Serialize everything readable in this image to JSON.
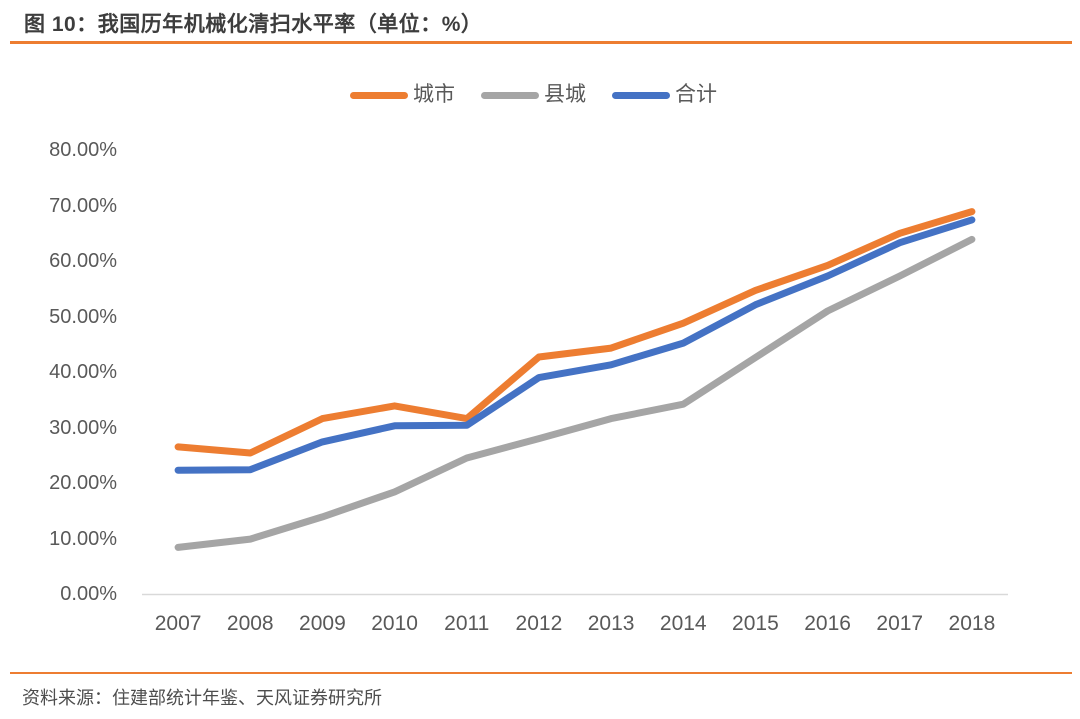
{
  "header": {
    "figure_title": "图 10：我国历年机械化清扫水平率（单位：%）"
  },
  "chart_data": {
    "type": "line",
    "title": "我国历年机械化清扫水平率",
    "unit": "%",
    "legend_position": "top",
    "grid": false,
    "ylim": [
      0,
      80
    ],
    "yticks": [
      "80.00%",
      "70.00%",
      "60.00%",
      "50.00%",
      "40.00%",
      "30.00%",
      "20.00%",
      "10.00%",
      "0.00%"
    ],
    "categories": [
      "2007",
      "2008",
      "2009",
      "2010",
      "2011",
      "2012",
      "2013",
      "2014",
      "2015",
      "2016",
      "2017",
      "2018"
    ],
    "series": [
      {
        "name": "城市",
        "color": "#ED7D31",
        "values": [
          26.5,
          25.4,
          31.6,
          33.9,
          31.6,
          42.7,
          44.3,
          48.8,
          54.7,
          59.2,
          65.0,
          68.9
        ]
      },
      {
        "name": "县城",
        "color": "#A5A5A5",
        "values": [
          8.4,
          9.9,
          13.9,
          18.4,
          24.5,
          28.0,
          31.6,
          34.2,
          42.6,
          51.0,
          57.3,
          63.9
        ]
      },
      {
        "name": "合计",
        "color": "#4472C4",
        "values": [
          22.3,
          22.4,
          27.4,
          30.3,
          30.4,
          39.0,
          41.3,
          45.2,
          52.1,
          57.3,
          63.3,
          67.4
        ]
      }
    ]
  },
  "footer": {
    "source": "资料来源：住建部统计年鉴、天风证券研究所"
  },
  "colors": {
    "accent": "#ED7D31",
    "series_city": "#ED7D31",
    "series_county": "#A5A5A5",
    "series_total": "#4472C4",
    "axis_line": "#D9D9D9",
    "tick_text": "#595959",
    "title_text": "#3D3D3D",
    "footer_text": "#4D4D4D"
  }
}
